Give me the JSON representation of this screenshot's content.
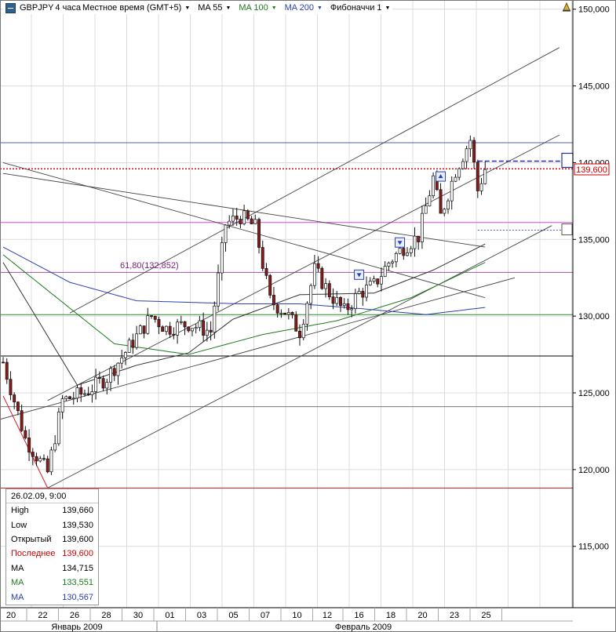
{
  "toolbar": {
    "symbol": "GBPJPY",
    "timeframe": "4 часа",
    "timezone": "Местное время (GMT+5)",
    "ma55": "MA 55",
    "ma100": "MA 100",
    "ma200": "MA 200",
    "fib": "Фибоначчи 1"
  },
  "colors": {
    "up": "#ffffff",
    "down": "#8b1a1a",
    "ma55": "#333333",
    "ma100": "#1f7a1f",
    "ma200": "#2a3fb0",
    "last_price": "#cc0000",
    "fib_label": "#7a1f7a"
  },
  "fib_label": "61,80(132,852)",
  "last_price_tag": "139,600",
  "info_panel": {
    "date": "26.02.09, 9:00",
    "rows": [
      {
        "label": "High",
        "value": "139,660",
        "color": "#000000"
      },
      {
        "label": "Low",
        "value": "139,530",
        "color": "#000000"
      },
      {
        "label": "Открытый",
        "value": "139,600",
        "color": "#000000"
      },
      {
        "label": "Последнее",
        "value": "139,600",
        "color": "#cc0000"
      },
      {
        "label": "MA",
        "value": "134,715",
        "color": "#000000"
      },
      {
        "label": "MA",
        "value": "133,551",
        "color": "#1f7a1f"
      },
      {
        "label": "MA",
        "value": "130,567",
        "color": "#2a3fb0"
      }
    ]
  },
  "chart_data": {
    "type": "candlestick",
    "ylim": [
      111000,
      150600
    ],
    "yticks": [
      {
        "v": 150000,
        "label": "150,000"
      },
      {
        "v": 145000,
        "label": "145,000"
      },
      {
        "v": 140000,
        "label": "140,000"
      },
      {
        "v": 135000,
        "label": "135,000"
      },
      {
        "v": 130000,
        "label": "130,000"
      },
      {
        "v": 125000,
        "label": "125,000"
      },
      {
        "v": 120000,
        "label": "120,000"
      },
      {
        "v": 115000,
        "label": "115,000"
      }
    ],
    "xticks": [
      "20",
      "22",
      "26",
      "28",
      "30",
      "01",
      "03",
      "05",
      "07",
      "10",
      "12",
      "16",
      "18",
      "20",
      "23",
      "25"
    ],
    "months": [
      "Январь 2009",
      "Февраль 2009"
    ],
    "price_anchors": [
      [
        0,
        127000
      ],
      [
        6,
        122000
      ],
      [
        12,
        119800
      ],
      [
        16,
        124500
      ],
      [
        22,
        125000
      ],
      [
        28,
        126000
      ],
      [
        34,
        128000
      ],
      [
        40,
        130000
      ],
      [
        44,
        129200
      ],
      [
        50,
        129500
      ],
      [
        56,
        129000
      ],
      [
        60,
        136000
      ],
      [
        64,
        136500
      ],
      [
        68,
        135800
      ],
      [
        72,
        131000
      ],
      [
        76,
        130300
      ],
      [
        80,
        129000
      ],
      [
        84,
        133000
      ],
      [
        88,
        131500
      ],
      [
        92,
        130300
      ],
      [
        96,
        131500
      ],
      [
        100,
        132000
      ],
      [
        104,
        133500
      ],
      [
        108,
        134500
      ],
      [
        112,
        135200
      ],
      [
        116,
        139000
      ],
      [
        118,
        136500
      ],
      [
        122,
        139500
      ],
      [
        126,
        141500
      ],
      [
        128,
        138200
      ],
      [
        130,
        139600
      ]
    ],
    "ma55_anchors": [
      [
        0,
        133500
      ],
      [
        20,
        125500
      ],
      [
        36,
        126800
      ],
      [
        50,
        127600
      ],
      [
        62,
        129800
      ],
      [
        80,
        131400
      ],
      [
        100,
        131500
      ],
      [
        116,
        133000
      ],
      [
        130,
        134700
      ]
    ],
    "ma100_anchors": [
      [
        0,
        134000
      ],
      [
        30,
        128200
      ],
      [
        50,
        127500
      ],
      [
        70,
        128800
      ],
      [
        90,
        129700
      ],
      [
        110,
        131200
      ],
      [
        130,
        133500
      ]
    ],
    "ma200_anchors": [
      [
        0,
        134500
      ],
      [
        18,
        132200
      ],
      [
        36,
        131000
      ],
      [
        50,
        130900
      ],
      [
        64,
        130800
      ],
      [
        80,
        130800
      ],
      [
        96,
        130500
      ],
      [
        114,
        130100
      ],
      [
        130,
        130567
      ]
    ],
    "horizontal_levels": [
      {
        "v": 141300,
        "color": "#4a5fcf",
        "width": 1,
        "dash": ""
      },
      {
        "v": 139600,
        "color": "#cc0000",
        "width": 1.4,
        "dash": "2,2"
      },
      {
        "v": 136100,
        "color": "#e040e0",
        "width": 1,
        "dash": ""
      },
      {
        "v": 132852,
        "color": "#a050a0",
        "width": 1,
        "dash": ""
      },
      {
        "v": 130100,
        "color": "#2c8a2c",
        "width": 1,
        "dash": ""
      },
      {
        "v": 127400,
        "color": "#000000",
        "width": 1,
        "dash": ""
      },
      {
        "v": 124100,
        "color": "#777777",
        "width": 1,
        "dash": ""
      },
      {
        "v": 118800,
        "color": "#b41e1e",
        "width": 1,
        "dash": ""
      }
    ],
    "trendlines": [
      {
        "p1": [
          0,
          140000
        ],
        "p2": [
          130,
          131200
        ],
        "color": "#444444"
      },
      {
        "p1": [
          0,
          139300
        ],
        "p2": [
          130,
          134500
        ],
        "color": "#444444"
      },
      {
        "p1": [
          -2,
          123200
        ],
        "p2": [
          138,
          132500
        ],
        "color": "#444444"
      },
      {
        "p1": [
          12,
          118800
        ],
        "p2": [
          148,
          135900
        ],
        "color": "#444444"
      },
      {
        "p1": [
          18,
          130200
        ],
        "p2": [
          150,
          147500
        ],
        "color": "#444444"
      },
      {
        "p1": [
          12,
          124500
        ],
        "p2": [
          150,
          141800
        ],
        "color": "#444444"
      }
    ],
    "red_segment": {
      "p1": [
        0,
        124800
      ],
      "p2": [
        12,
        118800
      ],
      "color": "#d62020"
    },
    "markers": [
      {
        "i": 96,
        "v": 132700,
        "dir": "down"
      },
      {
        "i": 107,
        "v": 134800,
        "dir": "down"
      },
      {
        "i": 118,
        "v": 139100,
        "dir": "up"
      }
    ]
  }
}
